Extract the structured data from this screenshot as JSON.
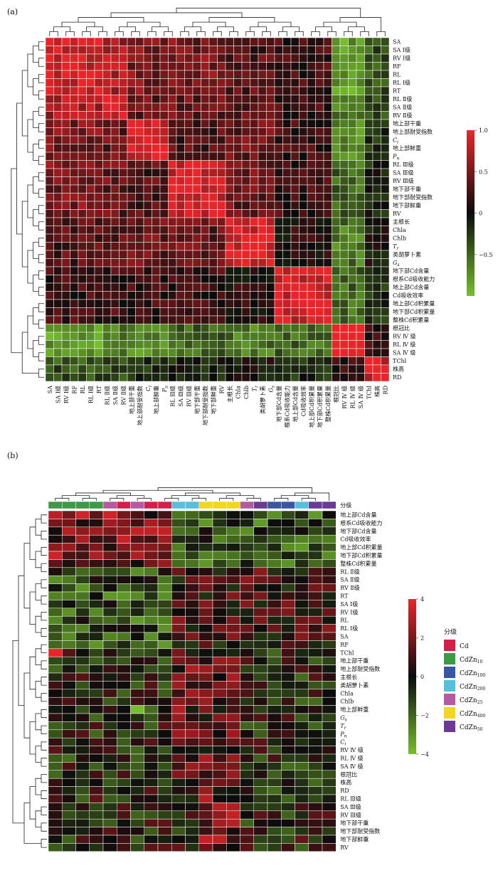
{
  "figure": {
    "panel_a_label": "(a)",
    "panel_b_label": "(b)"
  },
  "chart_data": [
    {
      "type": "heatmap",
      "title": "",
      "panel": "(a)",
      "description_note_free": true,
      "rows": [
        "SA",
        "SA Ⅰ级",
        "RV Ⅰ级",
        "RF",
        "RL",
        "RL Ⅰ级",
        "RT",
        "RL Ⅱ级",
        "SA Ⅱ级",
        "RV Ⅱ级",
        "地上部干重",
        "地上部耐受指数",
        "C",
        "地上部鲜重",
        "P",
        "RL Ⅲ级",
        "SA Ⅲ级",
        "RV Ⅲ级",
        "地下部干重",
        "地下部耐受指数",
        "地下部鲜重",
        "RV",
        "主根长",
        "Chla",
        "Chlb",
        "T",
        "类胡萝卜素",
        "G",
        "地下部Cd含量",
        "根系Cd吸收能力",
        "地上部Cd含量",
        "Cd吸收效率",
        "地上部Cd积累量",
        "地下部Cd积累量",
        "整株Cd积累量",
        "根冠比",
        "RV Ⅳ 级",
        "RL Ⅳ 级",
        "SA Ⅳ 级",
        "TChl",
        "株高",
        "RD"
      ],
      "row_subscripts": {
        "C": "i",
        "P": "n",
        "T": "r",
        "G": "s"
      },
      "columns": [
        "SA",
        "SA Ⅰ级",
        "RV Ⅰ级",
        "RF",
        "RL",
        "RL Ⅰ级",
        "RT",
        "RL Ⅱ级",
        "SA Ⅱ级",
        "RV Ⅱ级",
        "地上部干重",
        "地上部耐受指数",
        "C",
        "地上部鲜重",
        "P",
        "RL Ⅲ级",
        "SA Ⅲ级",
        "RV Ⅲ级",
        "地下部干重",
        "地下部耐受指数",
        "地下部鲜重",
        "RV",
        "主根长",
        "Chla",
        "Chlb",
        "T",
        "类胡萝卜素",
        "G",
        "地下部Cd含量",
        "根系Cd吸收能力",
        "地上部Cd含量",
        "Cd吸收效率",
        "地上部Cd积累量",
        "地下部Cd积累量",
        "整株Cd积累量",
        "根冠比",
        "RV Ⅳ 级",
        "RL Ⅳ 级",
        "SA Ⅳ 级",
        "TChl",
        "株高",
        "RD"
      ],
      "row_groups": [
        7,
        3,
        5,
        7,
        6,
        7,
        4,
        3
      ],
      "color_scale": {
        "min": -1,
        "max": 1,
        "ticks": [
          "1.0",
          "0.5",
          "0",
          "−0.5"
        ],
        "tick_values": [
          1,
          0.5,
          0,
          -0.5
        ],
        "colors": {
          "high": "#e8262a",
          "mid": "#0b0b0b",
          "low": "#76be2e"
        }
      },
      "value_type": "pairwise correlation coefficient, estimated per block"
    },
    {
      "type": "heatmap",
      "title": "",
      "panel": "(b)",
      "rows": [
        "地上部Cd含量",
        "根系Cd吸收能力",
        "地下部Cd含量",
        "Cd吸收效率",
        "地上部Cd积累量",
        "地下部Cd积累量",
        "整株Cd积累量",
        "RL Ⅱ级",
        "SA Ⅱ级",
        "RV Ⅱ级",
        "RT",
        "SA Ⅰ级",
        "RV Ⅰ级",
        "RL",
        "RL Ⅰ级",
        "SA",
        "RF",
        "TChl",
        "地上部干重",
        "地上部耐受指数",
        "主根长",
        "类胡萝卜素",
        "Chla",
        "Chlb",
        "地上部鲜重",
        "G",
        "T",
        "P",
        "C",
        "RV Ⅳ 级",
        "RL Ⅳ 级",
        "SA Ⅳ 级",
        "根冠比",
        "株高",
        "RD",
        "RL Ⅲ级",
        "SA Ⅲ级",
        "RV Ⅲ级",
        "地下部干重",
        "地下部耐受指数",
        "地下部鲜重",
        "RV"
      ],
      "row_subscripts": {
        "G": "s",
        "T": "r",
        "P": "n",
        "C": "i"
      },
      "annotation_title": "分级",
      "columns": 21,
      "column_groups": [
        "CdZn10",
        "CdZn10",
        "CdZn10",
        "CdZn10",
        "CdZn25",
        "Cd",
        "CdZn25",
        "Cd",
        "Cd",
        "CdZn200",
        "CdZn200",
        "CdZn400",
        "CdZn400",
        "CdZn400",
        "CdZn25",
        "CdZn50",
        "CdZn100",
        "CdZn100",
        "CdZn200",
        "CdZn50",
        "CdZn50"
      ],
      "legend": [
        {
          "label": "Cd",
          "base": "Cd",
          "sub": "",
          "color": "#d3204b"
        },
        {
          "label": "CdZn10",
          "base": "CdZn",
          "sub": "10",
          "color": "#3a9a45"
        },
        {
          "label": "CdZn100",
          "base": "CdZn",
          "sub": "100",
          "color": "#3856a4"
        },
        {
          "label": "CdZn200",
          "base": "CdZn",
          "sub": "200",
          "color": "#55bfdc"
        },
        {
          "label": "CdZn25",
          "base": "CdZn",
          "sub": "25",
          "color": "#b35aa3"
        },
        {
          "label": "CdZn400",
          "base": "CdZn",
          "sub": "400",
          "color": "#f3d523"
        },
        {
          "label": "CdZn50",
          "base": "CdZn",
          "sub": "50",
          "color": "#6b3a97"
        }
      ],
      "color_scale": {
        "min": -4,
        "max": 4,
        "ticks": [
          "4",
          "2",
          "0",
          "−2",
          "−4"
        ],
        "tick_values": [
          4,
          2,
          0,
          -2,
          -4
        ],
        "colors": {
          "high": "#e8262a",
          "mid": "#0b0b0b",
          "low": "#76be2e"
        }
      },
      "value_type": "standardized trait value (z-score), estimated"
    }
  ]
}
